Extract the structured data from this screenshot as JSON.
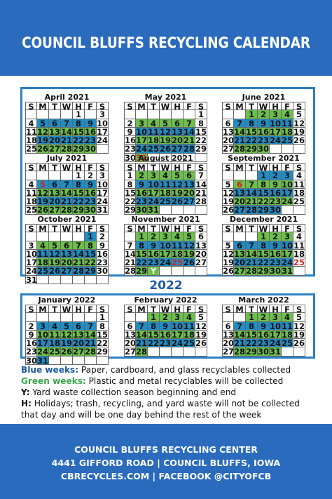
{
  "title": "COUNCIL BLUFFS RECYCLING CALENDAR",
  "year_label": "2022",
  "day_headers": [
    "S",
    "M",
    "T",
    "W",
    "H",
    "F",
    "S"
  ],
  "colors": {
    "header_bg": "#2a6bbd",
    "blue_week": "#1f8dc6",
    "green_week": "#6cc04a",
    "holiday": "#d7261e",
    "border": "#2a80c4"
  },
  "calendar_2021": [
    {
      "name": "April 2021",
      "first_day": 4,
      "days": 30,
      "weeks": [
        "e",
        "b",
        "g",
        "b",
        "g"
      ],
      "y": [
        2
      ],
      "h": [],
      "wrap": {}
    },
    {
      "name": "May 2021",
      "first_day": 6,
      "days": 31,
      "weeks": [
        "e",
        "g",
        "b",
        "g",
        "b",
        "g"
      ],
      "y": [],
      "h": [
        31
      ],
      "wrap": {
        "30": "30",
        "31": "31"
      }
    },
    {
      "name": "June 2021",
      "first_day": 2,
      "days": 30,
      "weeks": [
        "g",
        "b",
        "g",
        "b",
        "g"
      ],
      "y": [],
      "h": [],
      "wrap": {}
    },
    {
      "name": "July 2021",
      "first_day": 4,
      "days": 31,
      "weeks": [
        "e",
        "b",
        "g",
        "b",
        "g"
      ],
      "y": [],
      "h": [
        5
      ],
      "wrap": {}
    },
    {
      "name": "August 2021",
      "first_day": 0,
      "days": 31,
      "weeks": [
        "g",
        "b",
        "g",
        "b",
        "g"
      ],
      "y": [],
      "h": [],
      "wrap": {}
    },
    {
      "name": "September 2021",
      "first_day": 3,
      "days": 30,
      "weeks": [
        "b",
        "g",
        "b",
        "g",
        "b"
      ],
      "y": [],
      "h": [
        6
      ],
      "wrap": {}
    },
    {
      "name": "October 2021",
      "first_day": 5,
      "days": 31,
      "weeks": [
        "b",
        "g",
        "b",
        "g",
        "b",
        "g"
      ],
      "y": [],
      "h": [],
      "wrap": {
        "31": "31"
      }
    },
    {
      "name": "November 2021",
      "first_day": 1,
      "days": 30,
      "weeks": [
        "g",
        "b",
        "g",
        "b",
        "g"
      ],
      "y": [
        30
      ],
      "h": [
        25
      ],
      "wrap": {}
    },
    {
      "name": "December 2021",
      "first_day": 3,
      "days": 31,
      "weeks": [
        "g",
        "b",
        "g",
        "b",
        "g"
      ],
      "y": [],
      "h": [
        25
      ],
      "wrap": {}
    }
  ],
  "calendar_2022": [
    {
      "name": "January 2022",
      "first_day": 6,
      "days": 31,
      "weeks": [
        "e",
        "b",
        "g",
        "b",
        "g",
        "b"
      ],
      "y": [],
      "h": [],
      "wrap": {
        "30": "30",
        "31": "31"
      }
    },
    {
      "name": "February 2022",
      "first_day": 2,
      "days": 28,
      "weeks": [
        "g",
        "b",
        "g",
        "b",
        "g"
      ],
      "y": [],
      "h": [],
      "wrap": {}
    },
    {
      "name": "March 2022",
      "first_day": 2,
      "days": 31,
      "weeks": [
        "g",
        "b",
        "g",
        "b",
        "g"
      ],
      "y": [],
      "h": [],
      "wrap": {}
    }
  ],
  "legend": {
    "blue_key": "Blue weeks:",
    "blue_text": " Paper, cardboard, and glass recyclables collected",
    "green_key": "Green weeks:",
    "green_text": " Plastic and metal recyclables will be collected",
    "y_key": "Y:",
    "y_text": " Yard waste collection season beginning and end",
    "h_key": "H:",
    "h_text": " Holidays; trash, recycling, and yard waste will not be collected",
    "h_text2": "that day and will be one day behind the rest of the week"
  },
  "footer": {
    "line1": "COUNCIL BLUFFS RECYCLING CENTER",
    "line2": "4441 GIFFORD ROAD | COUNCIL BLUFFS, IOWA",
    "line3": "CBRECYCLES.COM | FACEBOOK @CITYOFCB"
  }
}
